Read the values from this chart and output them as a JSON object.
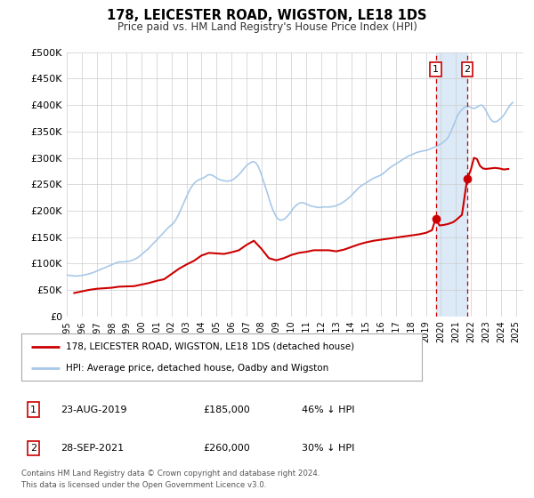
{
  "title": "178, LEICESTER ROAD, WIGSTON, LE18 1DS",
  "subtitle": "Price paid vs. HM Land Registry's House Price Index (HPI)",
  "background_color": "#ffffff",
  "plot_bg_color": "#ffffff",
  "grid_color": "#cccccc",
  "hpi_color": "#a8c8e8",
  "price_color": "#cc0000",
  "marker_color": "#cc0000",
  "shade_color": "#dceaf7",
  "vline_color": "#cc0000",
  "yticks": [
    0,
    50000,
    100000,
    150000,
    200000,
    250000,
    300000,
    350000,
    400000,
    450000,
    500000
  ],
  "ytick_labels": [
    "£0",
    "£50K",
    "£100K",
    "£150K",
    "£200K",
    "£250K",
    "£300K",
    "£350K",
    "£400K",
    "£450K",
    "£500K"
  ],
  "xlim_start": 1995.0,
  "xlim_end": 2025.5,
  "ylim_min": 0,
  "ylim_max": 500000,
  "event1_x": 2019.645,
  "event1_y": 185000,
  "event1_label": "1",
  "event1_date": "23-AUG-2019",
  "event1_price": "£185,000",
  "event1_hpi": "46% ↓ HPI",
  "event2_x": 2021.747,
  "event2_y": 260000,
  "event2_label": "2",
  "event2_date": "28-SEP-2021",
  "event2_price": "£260,000",
  "event2_hpi": "30% ↓ HPI",
  "legend_line1": "178, LEICESTER ROAD, WIGSTON, LE18 1DS (detached house)",
  "legend_line2": "HPI: Average price, detached house, Oadby and Wigston",
  "footer1": "Contains HM Land Registry data © Crown copyright and database right 2024.",
  "footer2": "This data is licensed under the Open Government Licence v3.0.",
  "hpi_data": [
    [
      1995.04,
      78000
    ],
    [
      1995.12,
      77500
    ],
    [
      1995.29,
      77000
    ],
    [
      1995.46,
      76500
    ],
    [
      1995.62,
      76000
    ],
    [
      1995.79,
      76500
    ],
    [
      1995.96,
      77000
    ],
    [
      1996.12,
      78000
    ],
    [
      1996.29,
      79000
    ],
    [
      1996.46,
      80000
    ],
    [
      1996.62,
      81500
    ],
    [
      1996.79,
      83000
    ],
    [
      1996.96,
      85000
    ],
    [
      1997.12,
      87000
    ],
    [
      1997.29,
      89000
    ],
    [
      1997.46,
      91000
    ],
    [
      1997.62,
      93000
    ],
    [
      1997.79,
      95000
    ],
    [
      1997.96,
      97000
    ],
    [
      1998.12,
      99000
    ],
    [
      1998.29,
      101000
    ],
    [
      1998.46,
      102500
    ],
    [
      1998.62,
      103000
    ],
    [
      1998.79,
      103000
    ],
    [
      1998.96,
      103500
    ],
    [
      1999.12,
      104000
    ],
    [
      1999.29,
      105000
    ],
    [
      1999.46,
      107000
    ],
    [
      1999.62,
      109000
    ],
    [
      1999.79,
      112000
    ],
    [
      1999.96,
      116000
    ],
    [
      2000.12,
      120000
    ],
    [
      2000.29,
      124000
    ],
    [
      2000.46,
      128000
    ],
    [
      2000.62,
      133000
    ],
    [
      2000.79,
      138000
    ],
    [
      2000.96,
      143000
    ],
    [
      2001.12,
      148000
    ],
    [
      2001.29,
      153000
    ],
    [
      2001.46,
      158000
    ],
    [
      2001.62,
      163000
    ],
    [
      2001.79,
      168000
    ],
    [
      2001.96,
      172000
    ],
    [
      2002.12,
      176000
    ],
    [
      2002.29,
      183000
    ],
    [
      2002.46,
      192000
    ],
    [
      2002.62,
      202000
    ],
    [
      2002.79,
      213000
    ],
    [
      2002.96,
      224000
    ],
    [
      2003.12,
      234000
    ],
    [
      2003.29,
      243000
    ],
    [
      2003.46,
      250000
    ],
    [
      2003.62,
      255000
    ],
    [
      2003.79,
      258000
    ],
    [
      2003.96,
      260000
    ],
    [
      2004.12,
      262000
    ],
    [
      2004.29,
      265000
    ],
    [
      2004.46,
      268000
    ],
    [
      2004.62,
      268000
    ],
    [
      2004.79,
      266000
    ],
    [
      2004.96,
      263000
    ],
    [
      2005.12,
      260000
    ],
    [
      2005.29,
      258000
    ],
    [
      2005.46,
      257000
    ],
    [
      2005.62,
      256000
    ],
    [
      2005.79,
      256000
    ],
    [
      2005.96,
      257000
    ],
    [
      2006.12,
      259000
    ],
    [
      2006.29,
      263000
    ],
    [
      2006.46,
      267000
    ],
    [
      2006.62,
      272000
    ],
    [
      2006.79,
      278000
    ],
    [
      2006.96,
      284000
    ],
    [
      2007.12,
      288000
    ],
    [
      2007.29,
      291000
    ],
    [
      2007.46,
      293000
    ],
    [
      2007.62,
      291000
    ],
    [
      2007.79,
      284000
    ],
    [
      2007.96,
      272000
    ],
    [
      2008.12,
      258000
    ],
    [
      2008.29,
      243000
    ],
    [
      2008.46,
      228000
    ],
    [
      2008.62,
      213000
    ],
    [
      2008.79,
      200000
    ],
    [
      2008.96,
      190000
    ],
    [
      2009.12,
      184000
    ],
    [
      2009.29,
      182000
    ],
    [
      2009.46,
      183000
    ],
    [
      2009.62,
      186000
    ],
    [
      2009.79,
      191000
    ],
    [
      2009.96,
      197000
    ],
    [
      2010.12,
      204000
    ],
    [
      2010.29,
      209000
    ],
    [
      2010.46,
      213000
    ],
    [
      2010.62,
      215000
    ],
    [
      2010.79,
      215000
    ],
    [
      2010.96,
      213000
    ],
    [
      2011.12,
      211000
    ],
    [
      2011.29,
      209000
    ],
    [
      2011.46,
      208000
    ],
    [
      2011.62,
      207000
    ],
    [
      2011.79,
      206000
    ],
    [
      2011.96,
      206000
    ],
    [
      2012.12,
      207000
    ],
    [
      2012.29,
      207000
    ],
    [
      2012.46,
      207000
    ],
    [
      2012.62,
      207000
    ],
    [
      2012.79,
      208000
    ],
    [
      2012.96,
      209000
    ],
    [
      2013.12,
      211000
    ],
    [
      2013.29,
      213000
    ],
    [
      2013.46,
      216000
    ],
    [
      2013.62,
      219000
    ],
    [
      2013.79,
      223000
    ],
    [
      2013.96,
      227000
    ],
    [
      2014.12,
      232000
    ],
    [
      2014.29,
      237000
    ],
    [
      2014.46,
      242000
    ],
    [
      2014.62,
      246000
    ],
    [
      2014.79,
      249000
    ],
    [
      2014.96,
      252000
    ],
    [
      2015.12,
      255000
    ],
    [
      2015.29,
      258000
    ],
    [
      2015.46,
      261000
    ],
    [
      2015.62,
      263000
    ],
    [
      2015.79,
      265000
    ],
    [
      2015.96,
      267000
    ],
    [
      2016.12,
      270000
    ],
    [
      2016.29,
      274000
    ],
    [
      2016.46,
      278000
    ],
    [
      2016.62,
      282000
    ],
    [
      2016.79,
      285000
    ],
    [
      2016.96,
      288000
    ],
    [
      2017.12,
      291000
    ],
    [
      2017.29,
      294000
    ],
    [
      2017.46,
      297000
    ],
    [
      2017.62,
      300000
    ],
    [
      2017.79,
      303000
    ],
    [
      2017.96,
      305000
    ],
    [
      2018.12,
      307000
    ],
    [
      2018.29,
      309000
    ],
    [
      2018.46,
      311000
    ],
    [
      2018.62,
      312000
    ],
    [
      2018.79,
      313000
    ],
    [
      2018.96,
      314000
    ],
    [
      2019.12,
      315000
    ],
    [
      2019.29,
      317000
    ],
    [
      2019.46,
      319000
    ],
    [
      2019.62,
      321000
    ],
    [
      2019.79,
      323000
    ],
    [
      2019.96,
      326000
    ],
    [
      2020.12,
      329000
    ],
    [
      2020.29,
      333000
    ],
    [
      2020.46,
      338000
    ],
    [
      2020.62,
      347000
    ],
    [
      2020.79,
      358000
    ],
    [
      2020.96,
      370000
    ],
    [
      2021.12,
      381000
    ],
    [
      2021.29,
      388000
    ],
    [
      2021.46,
      393000
    ],
    [
      2021.62,
      397000
    ],
    [
      2021.79,
      398000
    ],
    [
      2021.96,
      396000
    ],
    [
      2022.12,
      394000
    ],
    [
      2022.29,
      394000
    ],
    [
      2022.46,
      397000
    ],
    [
      2022.62,
      400000
    ],
    [
      2022.79,
      399000
    ],
    [
      2022.96,
      392000
    ],
    [
      2023.12,
      383000
    ],
    [
      2023.29,
      374000
    ],
    [
      2023.46,
      369000
    ],
    [
      2023.62,
      368000
    ],
    [
      2023.79,
      370000
    ],
    [
      2023.96,
      374000
    ],
    [
      2024.12,
      378000
    ],
    [
      2024.29,
      385000
    ],
    [
      2024.46,
      393000
    ],
    [
      2024.62,
      400000
    ],
    [
      2024.79,
      405000
    ]
  ],
  "price_data": [
    [
      1995.5,
      44000
    ],
    [
      1996.0,
      47000
    ],
    [
      1996.5,
      50000
    ],
    [
      1997.0,
      52000
    ],
    [
      1997.5,
      53000
    ],
    [
      1998.0,
      54000
    ],
    [
      1998.5,
      56000
    ],
    [
      1999.0,
      56500
    ],
    [
      1999.5,
      57000
    ],
    [
      2000.0,
      60000
    ],
    [
      2000.5,
      63000
    ],
    [
      2001.0,
      67000
    ],
    [
      2001.5,
      70000
    ],
    [
      2002.0,
      80000
    ],
    [
      2002.5,
      90000
    ],
    [
      2003.0,
      98000
    ],
    [
      2003.5,
      105000
    ],
    [
      2004.0,
      115000
    ],
    [
      2004.5,
      120000
    ],
    [
      2005.0,
      119000
    ],
    [
      2005.5,
      118000
    ],
    [
      2006.0,
      121000
    ],
    [
      2006.5,
      125000
    ],
    [
      2007.0,
      135000
    ],
    [
      2007.5,
      143000
    ],
    [
      2008.0,
      128000
    ],
    [
      2008.5,
      110000
    ],
    [
      2009.0,
      106000
    ],
    [
      2009.5,
      110000
    ],
    [
      2010.0,
      116000
    ],
    [
      2010.5,
      120000
    ],
    [
      2011.0,
      122000
    ],
    [
      2011.5,
      125000
    ],
    [
      2012.0,
      125000
    ],
    [
      2012.5,
      125000
    ],
    [
      2013.0,
      123000
    ],
    [
      2013.5,
      126000
    ],
    [
      2014.0,
      131000
    ],
    [
      2014.5,
      136000
    ],
    [
      2015.0,
      140000
    ],
    [
      2015.5,
      143000
    ],
    [
      2016.0,
      145000
    ],
    [
      2016.5,
      147000
    ],
    [
      2017.0,
      149000
    ],
    [
      2017.5,
      151000
    ],
    [
      2018.0,
      153000
    ],
    [
      2018.5,
      155000
    ],
    [
      2019.0,
      158000
    ],
    [
      2019.4,
      163000
    ],
    [
      2019.645,
      185000
    ],
    [
      2019.9,
      172000
    ],
    [
      2020.2,
      173000
    ],
    [
      2020.5,
      175000
    ],
    [
      2020.8,
      178000
    ],
    [
      2021.0,
      182000
    ],
    [
      2021.4,
      192000
    ],
    [
      2021.747,
      260000
    ],
    [
      2022.0,
      278000
    ],
    [
      2022.2,
      300000
    ],
    [
      2022.4,
      298000
    ],
    [
      2022.6,
      285000
    ],
    [
      2022.8,
      280000
    ],
    [
      2023.0,
      279000
    ],
    [
      2023.3,
      280000
    ],
    [
      2023.6,
      281000
    ],
    [
      2023.9,
      280000
    ],
    [
      2024.2,
      278000
    ],
    [
      2024.5,
      279000
    ]
  ]
}
